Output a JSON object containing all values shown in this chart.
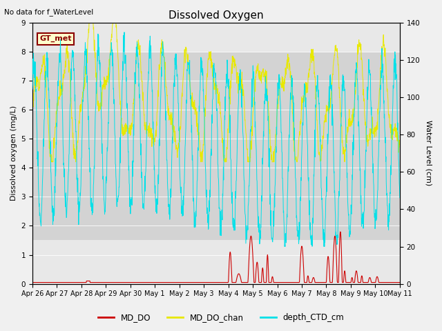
{
  "title": "Dissolved Oxygen",
  "top_left_text": "No data for f_WaterLevel",
  "annotation_text": "GT_met",
  "ylabel_left": "Dissolved oxygen (mg/L)",
  "ylabel_right": "Water Level (cm)",
  "ylim_left": [
    0,
    9.0
  ],
  "ylim_right": [
    0,
    140
  ],
  "yticks_left": [
    0.0,
    1.0,
    2.0,
    3.0,
    4.0,
    5.0,
    6.0,
    7.0,
    8.0,
    9.0
  ],
  "yticks_right": [
    0,
    20,
    40,
    60,
    80,
    100,
    120,
    140
  ],
  "background_color": "#f0f0f0",
  "plot_bg_color": "#e8e8e8",
  "shaded_band": [
    1.5,
    8.0
  ],
  "shaded_band_color": "#d3d3d3",
  "colors": {
    "MD_DO": "#cc0000",
    "MD_DO_chan": "#e8e800",
    "depth_CTD_cm": "#00e0e8"
  },
  "legend_labels": [
    "MD_DO",
    "MD_DO_chan",
    "depth_CTD_cm"
  ],
  "xtick_labels": [
    "Apr 26",
    "Apr 27",
    "Apr 28",
    "Apr 29",
    "Apr 30",
    "May 1",
    "May 2",
    "May 3",
    "May 4",
    "May 5",
    "May 6",
    "May 7",
    "May 8",
    "May 9",
    "May 10",
    "May 11"
  ],
  "n_days": 15,
  "figsize": [
    6.4,
    4.8
  ],
  "dpi": 100
}
